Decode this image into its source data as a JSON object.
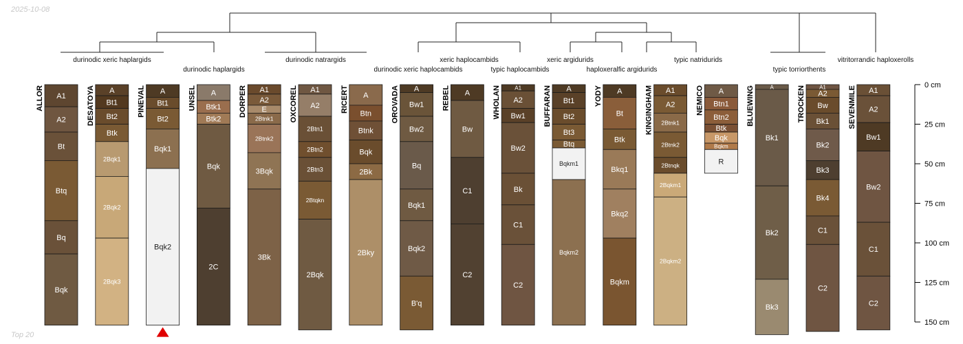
{
  "date_stamp": "2025-10-08",
  "footer_note": "Top 20",
  "depth_axis": {
    "unit": "cm",
    "max": 150,
    "ticks": [
      0,
      25,
      50,
      75,
      100,
      125,
      150
    ]
  },
  "taxa": [
    "durinodic xeric haplargids",
    "durinodic haplargids",
    "durinodic natrargids",
    "xeric haplocambids",
    "durinodic xeric haplocambids",
    "typic haplocambids",
    "xeric argidurids",
    "haploxeralfic argidurids",
    "typic natridurids",
    "typic torriorthents",
    "vitritorrandic haploxerolls"
  ],
  "profiles": [
    {
      "name": "ALLOR",
      "horizons": [
        {
          "name": "A1",
          "top": 0,
          "bottom": 14,
          "color": "#5e4630"
        },
        {
          "name": "A2",
          "top": 14,
          "bottom": 30,
          "color": "#6f5640"
        },
        {
          "name": "Bt",
          "top": 30,
          "bottom": 48,
          "color": "#6a5139"
        },
        {
          "name": "Btq",
          "top": 48,
          "bottom": 86,
          "color": "#7a5a34"
        },
        {
          "name": "Bq",
          "top": 86,
          "bottom": 107,
          "color": "#6a5139"
        },
        {
          "name": "Bqk",
          "top": 107,
          "bottom": 152,
          "color": "#6f5a42"
        }
      ]
    },
    {
      "name": "DESATOYA",
      "horizons": [
        {
          "name": "A",
          "top": 0,
          "bottom": 7,
          "color": "#5a4128"
        },
        {
          "name": "Bt1",
          "top": 7,
          "bottom": 15,
          "color": "#53391f"
        },
        {
          "name": "Bt2",
          "top": 15,
          "bottom": 25,
          "color": "#6a4c2c"
        },
        {
          "name": "Btk",
          "top": 25,
          "bottom": 36,
          "color": "#7a5a34"
        },
        {
          "name": "2Bqk1",
          "top": 36,
          "bottom": 58,
          "color": "#b89a70"
        },
        {
          "name": "2Bqk2",
          "top": 58,
          "bottom": 97,
          "color": "#c8a878"
        },
        {
          "name": "2Bqk3",
          "top": 97,
          "bottom": 152,
          "color": "#d2b283"
        }
      ]
    },
    {
      "name": "PINEVAL",
      "horizons": [
        {
          "name": "A",
          "top": 0,
          "bottom": 8,
          "color": "#4e3a24"
        },
        {
          "name": "Bt1",
          "top": 8,
          "bottom": 15,
          "color": "#6a4c2c"
        },
        {
          "name": "Bt2",
          "top": 15,
          "bottom": 28,
          "color": "#7a5a34"
        },
        {
          "name": "Bqk1",
          "top": 28,
          "bottom": 53,
          "color": "#8c7050"
        },
        {
          "name": "Bqk2",
          "top": 53,
          "bottom": 152,
          "color": "#f2f2f2"
        }
      ]
    },
    {
      "name": "UNSEL",
      "horizons": [
        {
          "name": "A",
          "top": 0,
          "bottom": 10,
          "color": "#8a7a6a"
        },
        {
          "name": "Btk1",
          "top": 10,
          "bottom": 18,
          "color": "#9a6e4e"
        },
        {
          "name": "Btk2",
          "top": 18,
          "bottom": 25,
          "color": "#a07a56"
        },
        {
          "name": "Bqk",
          "top": 25,
          "bottom": 78,
          "color": "#6f5a42"
        },
        {
          "name": "2C",
          "top": 78,
          "bottom": 152,
          "color": "#4e3f30"
        }
      ]
    },
    {
      "name": "DORPER",
      "horizons": [
        {
          "name": "A1",
          "top": 0,
          "bottom": 6,
          "color": "#6a4a2c"
        },
        {
          "name": "A2",
          "top": 6,
          "bottom": 13,
          "color": "#7a5a3a"
        },
        {
          "name": "E",
          "top": 13,
          "bottom": 18,
          "color": "#a88a6a"
        },
        {
          "name": "2Btnk1",
          "top": 18,
          "bottom": 25,
          "color": "#8a6a4a"
        },
        {
          "name": "2Btnk2",
          "top": 25,
          "bottom": 43,
          "color": "#9a7458"
        },
        {
          "name": "3Bqk",
          "top": 43,
          "bottom": 66,
          "color": "#8f7454"
        },
        {
          "name": "3Bk",
          "top": 66,
          "bottom": 152,
          "color": "#7d6247"
        }
      ]
    },
    {
      "name": "OXCOREL",
      "horizons": [
        {
          "name": "A1",
          "top": 0,
          "bottom": 6,
          "color": "#6f5742"
        },
        {
          "name": "A2",
          "top": 6,
          "bottom": 20,
          "color": "#957e68"
        },
        {
          "name": "2Btn1",
          "top": 20,
          "bottom": 36,
          "color": "#6a5036"
        },
        {
          "name": "2Btn2",
          "top": 36,
          "bottom": 46,
          "color": "#704f2e"
        },
        {
          "name": "2Btn3",
          "top": 46,
          "bottom": 61,
          "color": "#6a5036"
        },
        {
          "name": "2Btqkn",
          "top": 61,
          "bottom": 85,
          "color": "#7a5a34"
        },
        {
          "name": "2Bqk",
          "top": 85,
          "bottom": 155,
          "color": "#6f5a42"
        }
      ]
    },
    {
      "name": "RICERT",
      "horizons": [
        {
          "name": "A",
          "top": 0,
          "bottom": 13,
          "color": "#8a6a4c"
        },
        {
          "name": "Btn",
          "top": 13,
          "bottom": 23,
          "color": "#7a4f2e"
        },
        {
          "name": "Btnk",
          "top": 23,
          "bottom": 35,
          "color": "#6f5036"
        },
        {
          "name": "Bqk",
          "top": 35,
          "bottom": 50,
          "color": "#6a4c2c"
        },
        {
          "name": "2Bk",
          "top": 50,
          "bottom": 60,
          "color": "#8c6a44"
        },
        {
          "name": "2Bky",
          "top": 60,
          "bottom": 152,
          "color": "#ad8f68"
        }
      ]
    },
    {
      "name": "OROVADA",
      "horizons": [
        {
          "name": "A",
          "top": 0,
          "bottom": 5,
          "color": "#4e3a24"
        },
        {
          "name": "Bw1",
          "top": 5,
          "bottom": 20,
          "color": "#6a5439"
        },
        {
          "name": "Bw2",
          "top": 20,
          "bottom": 36,
          "color": "#6f5a42"
        },
        {
          "name": "Bq",
          "top": 36,
          "bottom": 66,
          "color": "#6a5a4a"
        },
        {
          "name": "Bqk1",
          "top": 66,
          "bottom": 86,
          "color": "#6f5a42"
        },
        {
          "name": "Bqk2",
          "top": 86,
          "bottom": 121,
          "color": "#6f5a46"
        },
        {
          "name": "B'q",
          "top": 121,
          "bottom": 155,
          "color": "#7a5a34"
        }
      ]
    },
    {
      "name": "REBEL",
      "horizons": [
        {
          "name": "A",
          "top": 0,
          "bottom": 10,
          "color": "#4e3a24"
        },
        {
          "name": "Bw",
          "top": 10,
          "bottom": 46,
          "color": "#6f5a42"
        },
        {
          "name": "C1",
          "top": 46,
          "bottom": 88,
          "color": "#4e3f30"
        },
        {
          "name": "C2",
          "top": 88,
          "bottom": 152,
          "color": "#514131"
        }
      ]
    },
    {
      "name": "WHOLAN",
      "horizons": [
        {
          "name": "A1",
          "top": 0,
          "bottom": 4,
          "color": "#4e3a24"
        },
        {
          "name": "A2",
          "top": 4,
          "bottom": 15,
          "color": "#6a5036"
        },
        {
          "name": "Bw1",
          "top": 15,
          "bottom": 24,
          "color": "#5a4128"
        },
        {
          "name": "Bw2",
          "top": 24,
          "bottom": 56,
          "color": "#6a5139"
        },
        {
          "name": "Bk",
          "top": 56,
          "bottom": 76,
          "color": "#6a5036"
        },
        {
          "name": "C1",
          "top": 76,
          "bottom": 101,
          "color": "#6a5139"
        },
        {
          "name": "C2",
          "top": 101,
          "bottom": 152,
          "color": "#6f5542"
        }
      ]
    },
    {
      "name": "BUFFARAN",
      "horizons": [
        {
          "name": "A",
          "top": 0,
          "bottom": 5,
          "color": "#4e3a24"
        },
        {
          "name": "Bt1",
          "top": 5,
          "bottom": 15,
          "color": "#5a4128"
        },
        {
          "name": "Bt2",
          "top": 15,
          "bottom": 25,
          "color": "#6a4c2c"
        },
        {
          "name": "Bt3",
          "top": 25,
          "bottom": 35,
          "color": "#7a5a34"
        },
        {
          "name": "Btq",
          "top": 35,
          "bottom": 40,
          "color": "#7a5a34"
        },
        {
          "name": "Bqkm1",
          "top": 40,
          "bottom": 60,
          "color": "#f2f2f2"
        },
        {
          "name": "Bqkm2",
          "top": 60,
          "bottom": 152,
          "color": "#8c7050"
        }
      ]
    },
    {
      "name": "YODY",
      "horizons": [
        {
          "name": "A",
          "top": 0,
          "bottom": 8,
          "color": "#4e3a24"
        },
        {
          "name": "Bt",
          "top": 8,
          "bottom": 28,
          "color": "#8a5e3a"
        },
        {
          "name": "Btk",
          "top": 28,
          "bottom": 41,
          "color": "#7a5a34"
        },
        {
          "name": "Bkq1",
          "top": 41,
          "bottom": 66,
          "color": "#9a7a58"
        },
        {
          "name": "Bkq2",
          "top": 66,
          "bottom": 97,
          "color": "#a08060"
        },
        {
          "name": "Bqkm",
          "top": 97,
          "bottom": 152,
          "color": "#7a5530"
        }
      ]
    },
    {
      "name": "KINGINGHAM",
      "horizons": [
        {
          "name": "A1",
          "top": 0,
          "bottom": 7,
          "color": "#6a4c2c"
        },
        {
          "name": "A2",
          "top": 7,
          "bottom": 18,
          "color": "#7a5a34"
        },
        {
          "name": "2Btnk1",
          "top": 18,
          "bottom": 30,
          "color": "#8a6a48"
        },
        {
          "name": "2Btnk2",
          "top": 30,
          "bottom": 46,
          "color": "#7a5a34"
        },
        {
          "name": "2Btnqk",
          "top": 46,
          "bottom": 56,
          "color": "#6a4c2c"
        },
        {
          "name": "2Bqkm1",
          "top": 56,
          "bottom": 71,
          "color": "#caa978"
        },
        {
          "name": "2Bqkm2",
          "top": 71,
          "bottom": 152,
          "color": "#ccb083"
        }
      ]
    },
    {
      "name": "NEMICO",
      "horizons": [
        {
          "name": "A",
          "top": 0,
          "bottom": 8,
          "color": "#6f5a46"
        },
        {
          "name": "Btn1",
          "top": 8,
          "bottom": 16,
          "color": "#8a5a3a"
        },
        {
          "name": "Btn2",
          "top": 16,
          "bottom": 25,
          "color": "#8c5e3a"
        },
        {
          "name": "Btk",
          "top": 25,
          "bottom": 30,
          "color": "#7a5034"
        },
        {
          "name": "Bqk",
          "top": 30,
          "bottom": 37,
          "color": "#c89868"
        },
        {
          "name": "Bqkm",
          "top": 37,
          "bottom": 41,
          "color": "#b07a4a"
        },
        {
          "name": "R",
          "top": 41,
          "bottom": 56,
          "color": "#f2f2f2"
        }
      ]
    },
    {
      "name": "BLUEWING",
      "horizons": [
        {
          "name": "A",
          "top": 0,
          "bottom": 3,
          "color": "#6a5a48"
        },
        {
          "name": "Bk1",
          "top": 3,
          "bottom": 64,
          "color": "#6a5a48"
        },
        {
          "name": "Bk2",
          "top": 64,
          "bottom": 123,
          "color": "#6f5e48"
        },
        {
          "name": "Bk3",
          "top": 123,
          "bottom": 158,
          "color": "#9a8a70"
        }
      ]
    },
    {
      "name": "TROCKEN",
      "horizons": [
        {
          "name": "A1",
          "top": 0,
          "bottom": 3,
          "color": "#6f5542"
        },
        {
          "name": "A2",
          "top": 3,
          "bottom": 8,
          "color": "#7a5a34"
        },
        {
          "name": "Bw",
          "top": 8,
          "bottom": 18,
          "color": "#6a4c2c"
        },
        {
          "name": "Bk1",
          "top": 18,
          "bottom": 28,
          "color": "#6a5036"
        },
        {
          "name": "Bk2",
          "top": 28,
          "bottom": 48,
          "color": "#6f5a4a"
        },
        {
          "name": "Bk3",
          "top": 48,
          "bottom": 60,
          "color": "#4e3f30"
        },
        {
          "name": "Bk4",
          "top": 60,
          "bottom": 83,
          "color": "#7a5a34"
        },
        {
          "name": "C1",
          "top": 83,
          "bottom": 101,
          "color": "#6a5139"
        },
        {
          "name": "C2",
          "top": 101,
          "bottom": 156,
          "color": "#6f5542"
        }
      ]
    },
    {
      "name": "SEVENMILE",
      "horizons": [
        {
          "name": "A1",
          "top": 0,
          "bottom": 7,
          "color": "#6a5036"
        },
        {
          "name": "A2",
          "top": 7,
          "bottom": 24,
          "color": "#6a5139"
        },
        {
          "name": "Bw1",
          "top": 24,
          "bottom": 42,
          "color": "#4e3a24"
        },
        {
          "name": "Bw2",
          "top": 42,
          "bottom": 87,
          "color": "#6f5542"
        },
        {
          "name": "C1",
          "top": 87,
          "bottom": 121,
          "color": "#6a5139"
        },
        {
          "name": "C2",
          "top": 121,
          "bottom": 155,
          "color": "#6f5542"
        }
      ]
    }
  ]
}
